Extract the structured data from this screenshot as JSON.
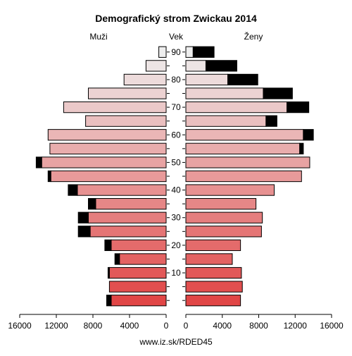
{
  "chart_data": {
    "type": "bar",
    "title": "Demografický strom Zwickau 2014",
    "left_label": "Muži",
    "center_label": "Vek",
    "right_label": "Ženy",
    "footer": "www.iz.sk/RDED45",
    "xlim": [
      0,
      16000
    ],
    "x_ticks": [
      0,
      4000,
      8000,
      12000,
      16000
    ],
    "x_tick_labels": [
      "0",
      "4000",
      "8000",
      "12000",
      "16000"
    ],
    "age_ticks": [
      10,
      20,
      30,
      40,
      50,
      60,
      70,
      80,
      90
    ],
    "age_groups": [
      0,
      5,
      10,
      15,
      20,
      25,
      30,
      35,
      40,
      45,
      50,
      55,
      60,
      65,
      70,
      75,
      80,
      85,
      90
    ],
    "series": [
      {
        "name": "Muži",
        "base": [
          6000,
          6200,
          6200,
          5100,
          6000,
          8300,
          8500,
          7700,
          9700,
          12600,
          13600,
          12700,
          12900,
          8800,
          11200,
          8500,
          4600,
          2200,
          800
        ],
        "excess": [
          500,
          0,
          150,
          500,
          700,
          1300,
          1100,
          800,
          1000,
          300,
          600,
          0,
          0,
          0,
          0,
          0,
          0,
          0,
          0
        ]
      },
      {
        "name": "Ženy",
        "base": [
          6000,
          6200,
          6100,
          5100,
          6000,
          8300,
          8400,
          7700,
          9700,
          12700,
          13600,
          12500,
          12900,
          8800,
          11100,
          8500,
          4600,
          2200,
          800
        ]
      }
    ],
    "female_excess": [
      0,
      0,
      0,
      0,
      0,
      0,
      0,
      0,
      0,
      0,
      0,
      400,
      1100,
      1200,
      2400,
      3200,
      3300,
      3400,
      2300
    ],
    "colors": {
      "young": "#e14646",
      "old": "#eeeeee",
      "excess": "#000000"
    }
  }
}
